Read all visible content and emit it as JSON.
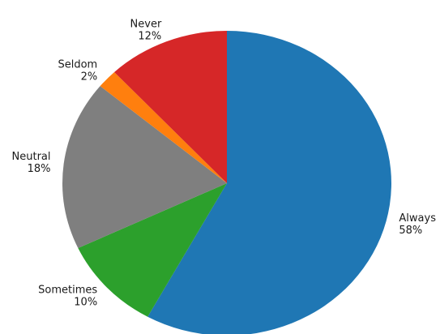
{
  "chart_data": {
    "type": "pie",
    "start_angle_deg": 0,
    "direction": "clockwise",
    "slices": [
      {
        "label": "Always",
        "value": 58,
        "value_label": "58%",
        "color": "#1f77b4"
      },
      {
        "label": "Sometimes",
        "value": 10,
        "value_label": "10%",
        "color": "#2ca02c"
      },
      {
        "label": "Neutral",
        "value": 18,
        "value_label": "18%",
        "color": "#7f7f7f"
      },
      {
        "label": "Seldom",
        "value": 2,
        "value_label": "2%",
        "color": "#ff7f0e"
      },
      {
        "label": "Never",
        "value": 12,
        "value_label": "12%",
        "color": "#d62728"
      }
    ]
  }
}
